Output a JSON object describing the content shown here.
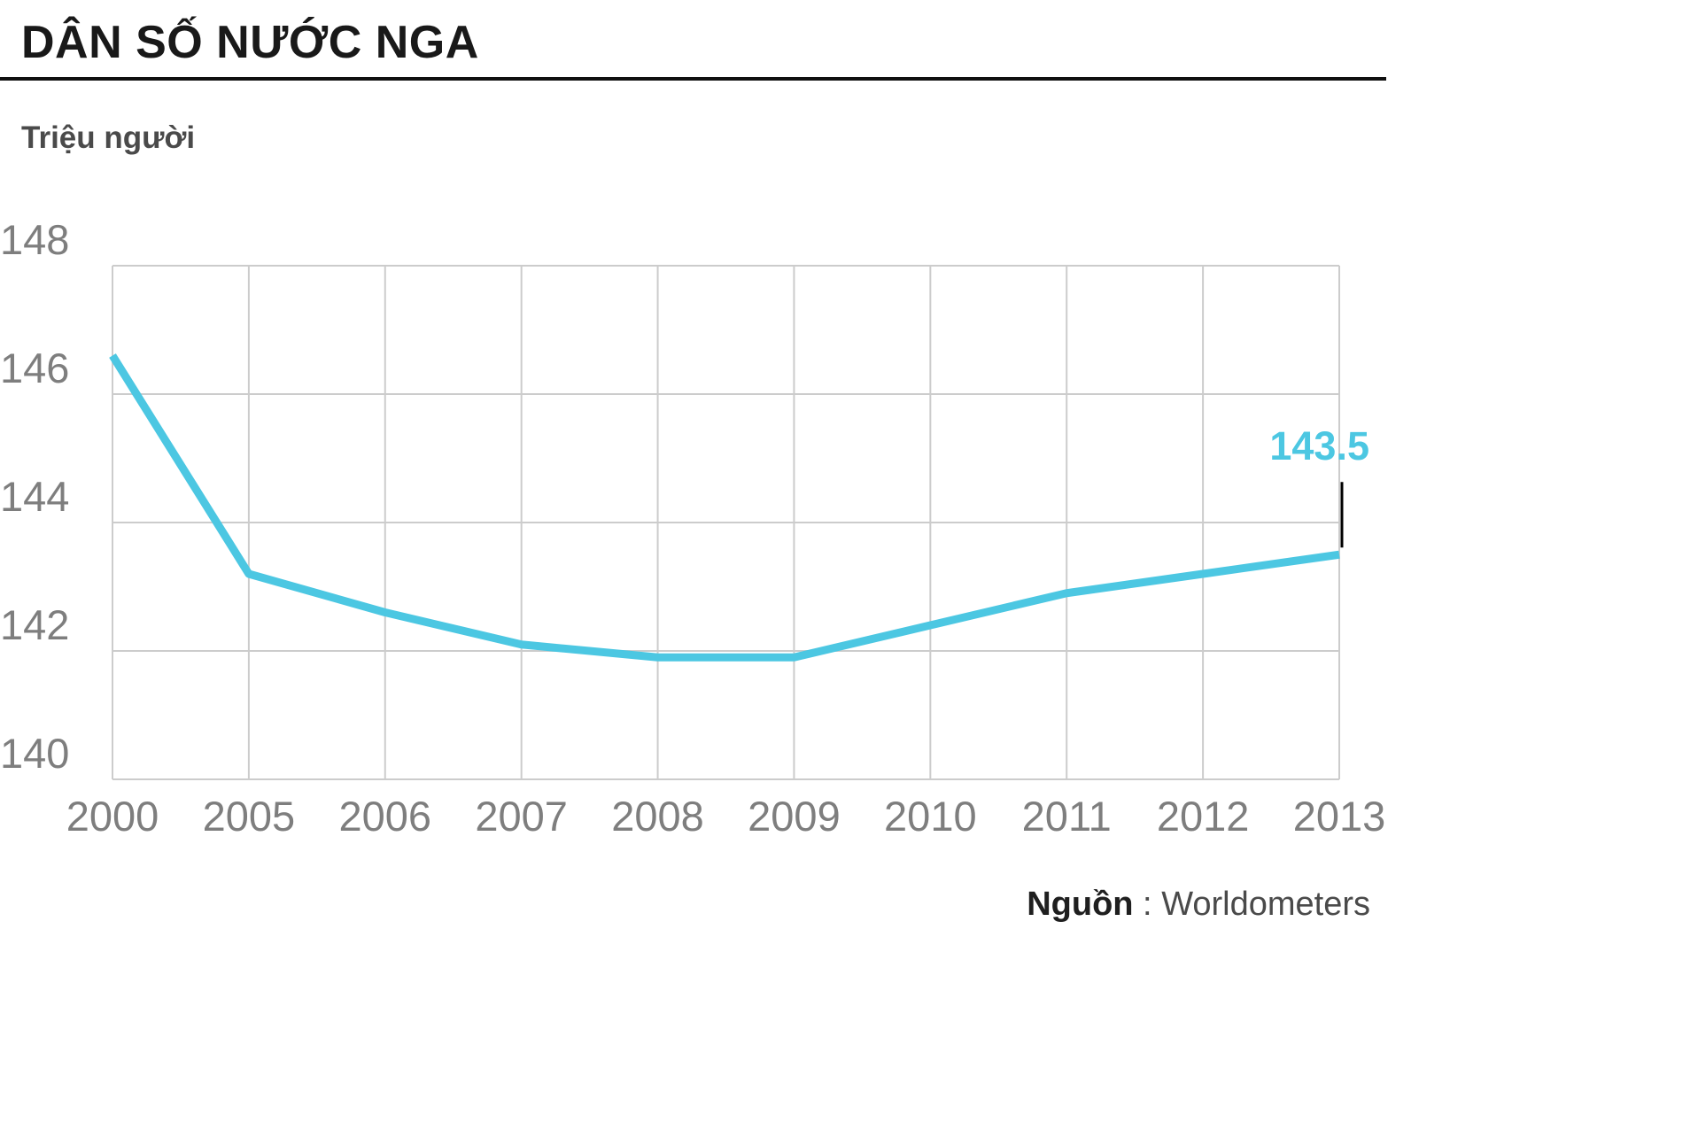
{
  "header": {
    "title": "DÂN SỐ NƯỚC NGA",
    "unit_label": "Triệu người"
  },
  "annotation": {
    "last_value_label": "143.5"
  },
  "source": {
    "label": "Nguồn",
    "separator": " : ",
    "name": "Worldometers"
  },
  "colors": {
    "line": "#4cc7e2",
    "grid": "#cccccc",
    "axis_text": "#7e7e7e",
    "title_text": "#191919",
    "annotation_text": "#4cc7e2",
    "callout_tick": "#000000"
  },
  "chart_data": {
    "type": "line",
    "title": "DÂN SỐ NƯỚC NGA",
    "ylabel": "Triệu người",
    "categories": [
      "2000",
      "2005",
      "2006",
      "2007",
      "2008",
      "2009",
      "2010",
      "2011",
      "2012",
      "2013"
    ],
    "values": [
      146.6,
      143.2,
      142.6,
      142.1,
      141.9,
      141.9,
      142.4,
      142.9,
      143.2,
      143.5
    ],
    "yticks": [
      140,
      142,
      144,
      146,
      148
    ],
    "ylim": [
      140,
      148
    ],
    "grid": true,
    "legend": false,
    "annotation": {
      "category": "2013",
      "label": "143.5"
    },
    "source": "Worldometers"
  }
}
